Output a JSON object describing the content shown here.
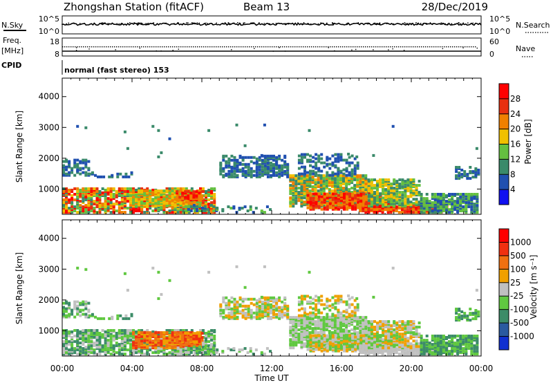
{
  "header": {
    "station": "Zhongshan Station (fitACF)",
    "beam": "Beam 13",
    "date": "28/Dec/2019"
  },
  "panels": {
    "nsky": {
      "label": "N.Sky",
      "tick_top": "10^5",
      "tick_bottom": "10^0"
    },
    "nsearch": {
      "label": "N.Search",
      "tick_top": "10^5",
      "tick_bottom": "10^0"
    },
    "freq": {
      "label_line1": "Freq.",
      "label_line2": "[MHz]",
      "tick_top": "18",
      "tick_bottom": "8"
    },
    "nave": {
      "label": "Nave",
      "tick_top": "60",
      "tick_bottom": "0"
    },
    "cpid": {
      "label": "CPID",
      "value": "normal (fast stereo) 153"
    }
  },
  "chart_data": [
    {
      "type": "heatmap",
      "ylabel": "Slant Range [km]",
      "xlabel": "",
      "xlim_hours": [
        0,
        24
      ],
      "ylim": [
        180,
        4600
      ],
      "y_ticks": [
        "1000",
        "2000",
        "3000",
        "4000"
      ],
      "colorbar": {
        "label": "Power [dB]",
        "tick_labels": [
          "4",
          "8",
          "12",
          "16",
          "20",
          "24",
          "28"
        ],
        "colors": [
          "#1010f0",
          "#2050b0",
          "#3a8a6a",
          "#64c040",
          "#f0c000",
          "#f08000",
          "#e83010",
          "#ff0000"
        ]
      }
    },
    {
      "type": "heatmap",
      "ylabel": "Slant Range [km]",
      "xlabel": "Time UT",
      "xlim_hours": [
        0,
        24
      ],
      "ylim": [
        180,
        4600
      ],
      "x_ticks": [
        "00:00",
        "04:00",
        "08:00",
        "12:00",
        "16:00",
        "20:00",
        "00:00"
      ],
      "y_ticks": [
        "1000",
        "2000",
        "3000",
        "4000"
      ],
      "colorbar": {
        "label": "Velocity [m s⁻¹]",
        "tick_labels": [
          "1000",
          "500",
          "100",
          "25",
          "-25",
          "-100",
          "-500",
          "-1000"
        ],
        "colors": [
          "#1030d0",
          "#2a5aa0",
          "#3c8c68",
          "#60c840",
          "#c0c0c0",
          "#f0a000",
          "#f07010",
          "#f03010",
          "#ff0000"
        ]
      }
    }
  ]
}
